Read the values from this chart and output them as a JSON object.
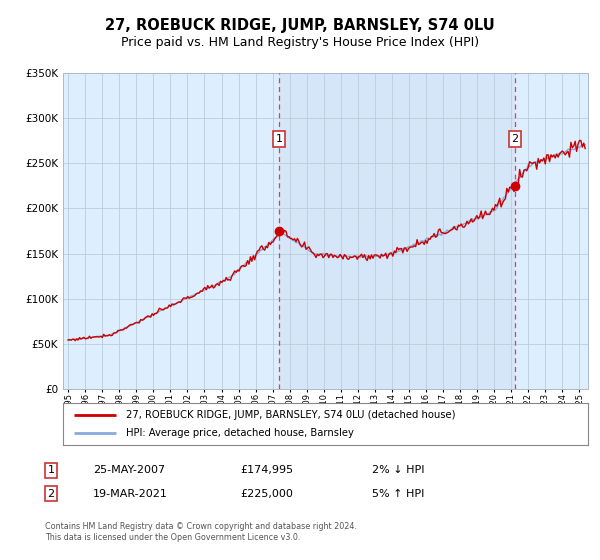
{
  "title": "27, ROEBUCK RIDGE, JUMP, BARNSLEY, S74 0LU",
  "subtitle": "Price paid vs. HM Land Registry's House Price Index (HPI)",
  "legend_line1": "27, ROEBUCK RIDGE, JUMP, BARNSLEY, S74 0LU (detached house)",
  "legend_line2": "HPI: Average price, detached house, Barnsley",
  "footer": "Contains HM Land Registry data © Crown copyright and database right 2024.\nThis data is licensed under the Open Government Licence v3.0.",
  "sale1_date": "25-MAY-2007",
  "sale1_price": "£174,995",
  "sale1_hpi": "2% ↓ HPI",
  "sale1_year": 2007.38,
  "sale1_value": 174995,
  "sale2_date": "19-MAR-2021",
  "sale2_price": "£225,000",
  "sale2_hpi": "5% ↑ HPI",
  "sale2_year": 2021.21,
  "sale2_value": 225000,
  "red_line_color": "#cc0000",
  "blue_line_color": "#88aadd",
  "marker_color": "#cc0000",
  "dashed_line_color": "#dd4444",
  "plot_bg_color": "#ddeeff",
  "plot_bg_between": "#cce0f0",
  "ylim": [
    0,
    350000
  ],
  "xlim_start": 1994.7,
  "xlim_end": 2025.5,
  "background_color": "#ffffff",
  "grid_color": "#bbccdd",
  "title_fontsize": 10.5,
  "subtitle_fontsize": 9
}
